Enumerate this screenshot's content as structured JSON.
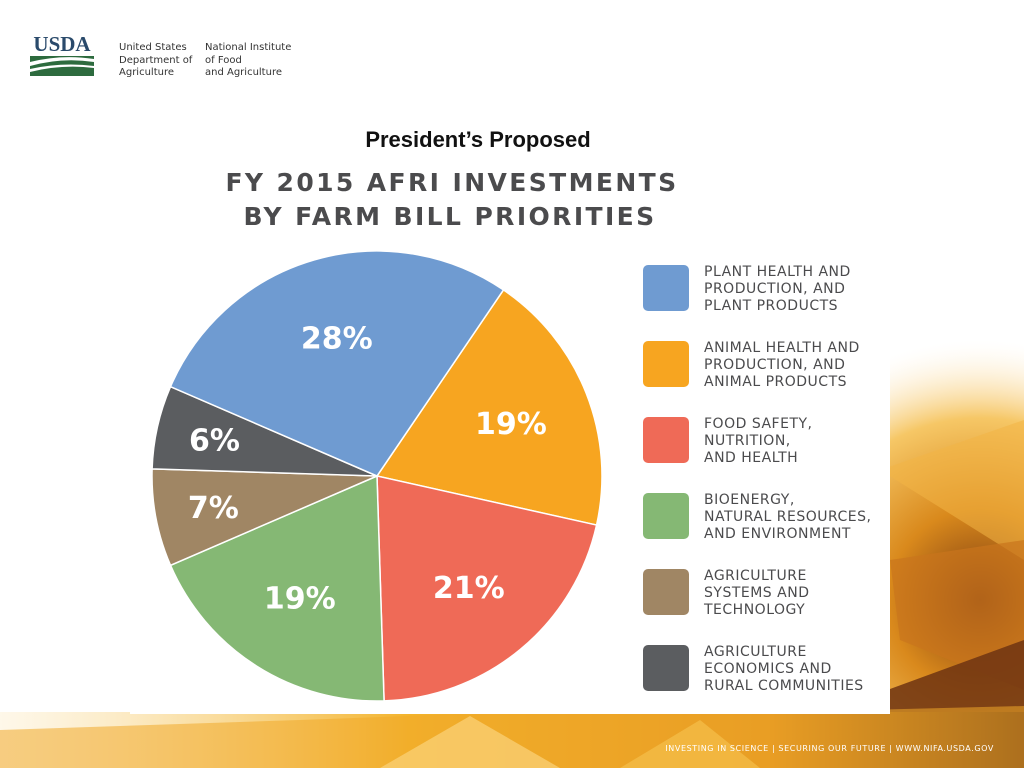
{
  "header": {
    "logo_text": "USDA",
    "agency_left": [
      "United States",
      "Department of",
      "Agriculture"
    ],
    "agency_right": [
      "National Institute",
      "of Food",
      "and Agriculture"
    ]
  },
  "subtitle": "President’s Proposed",
  "footer": "INVESTING IN SCIENCE | SECURING OUR FUTURE | WWW.NIFA.USDA.GOV",
  "colors": {
    "plant": "#6f9bd1",
    "animal": "#f7a520",
    "food": "#ef6a57",
    "bioenergy": "#85b874",
    "systems": "#a08664",
    "economics": "#5b5d60",
    "title_text": "#4b4b4d",
    "usda_green": "#2d6b3e",
    "usda_blue": "#2a4a6b"
  },
  "chart_data": {
    "type": "pie",
    "title": [
      "FY 2015 AFRI INVESTMENTS",
      "BY FARM BILL PRIORITIES"
    ],
    "slices": [
      {
        "key": "animal",
        "legend": [
          "ANIMAL HEALTH AND",
          "PRODUCTION, AND",
          "ANIMAL PRODUCTS"
        ],
        "value": 19,
        "label": "19%"
      },
      {
        "key": "food",
        "legend": [
          "FOOD SAFETY,",
          "NUTRITION,",
          "AND HEALTH"
        ],
        "value": 21,
        "label": "21%"
      },
      {
        "key": "bioenergy",
        "legend": [
          "BIOENERGY,",
          "NATURAL RESOURCES,",
          "AND ENVIRONMENT"
        ],
        "value": 19,
        "label": "19%"
      },
      {
        "key": "systems",
        "legend": [
          "AGRICULTURE",
          "SYSTEMS AND",
          "TECHNOLOGY"
        ],
        "value": 7,
        "label": "7%"
      },
      {
        "key": "economics",
        "legend": [
          "AGRICULTURE",
          "ECONOMICS AND",
          "RURAL COMMUNITIES"
        ],
        "value": 6,
        "label": "6%"
      },
      {
        "key": "plant",
        "legend": [
          "PLANT HEALTH AND",
          "PRODUCTION, AND",
          "PLANT PRODUCTS"
        ],
        "value": 28,
        "label": "28%"
      }
    ],
    "legend_order": [
      "plant",
      "animal",
      "food",
      "bioenergy",
      "systems",
      "economics"
    ],
    "legend_position": "right"
  }
}
